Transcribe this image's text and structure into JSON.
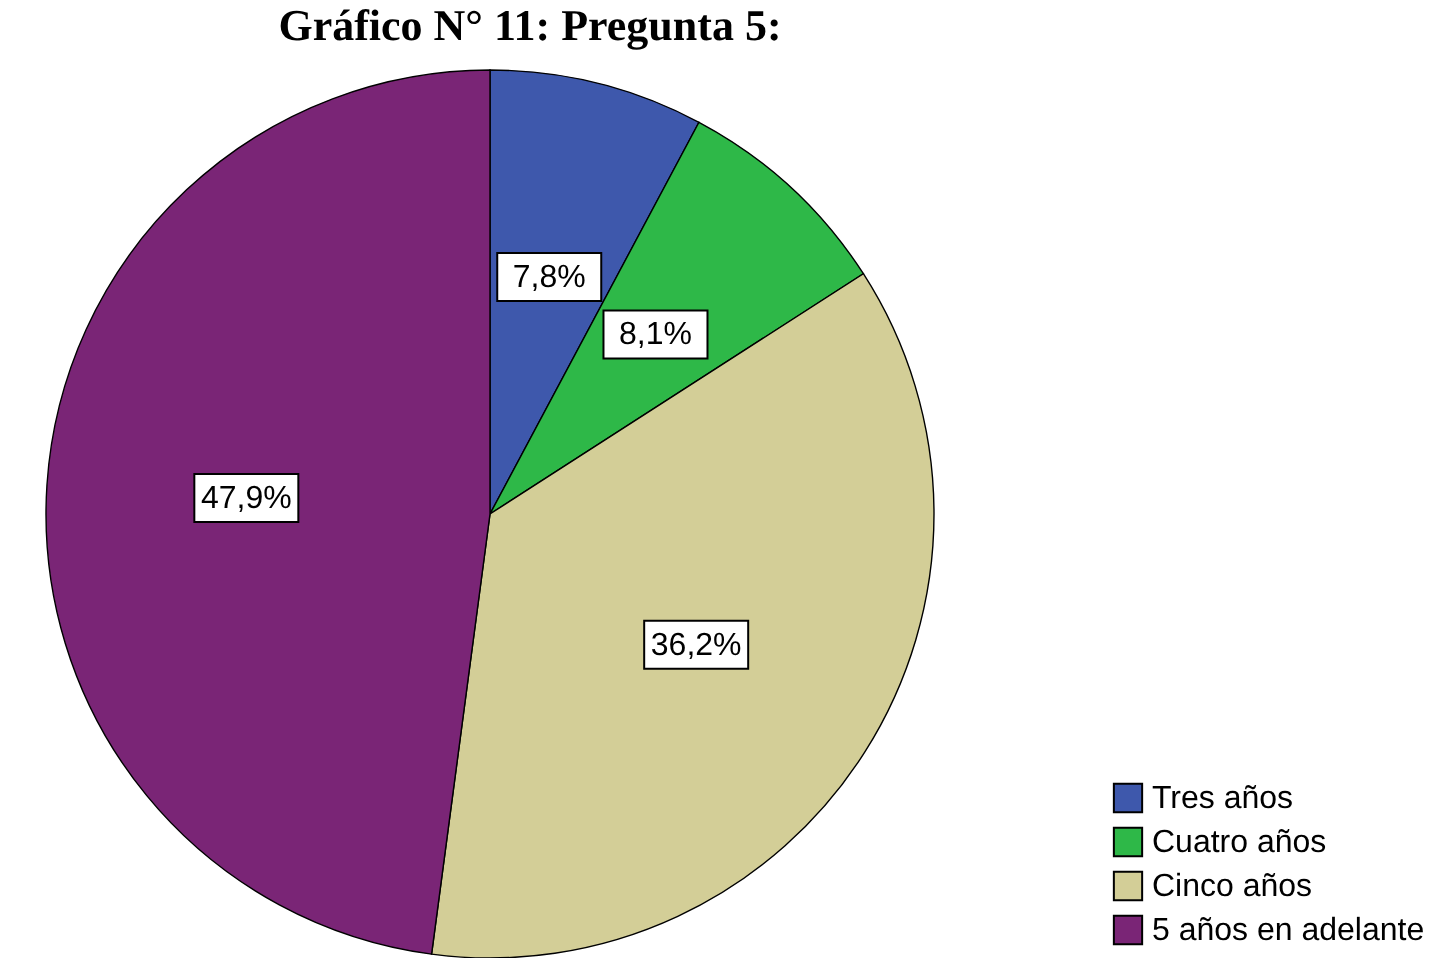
{
  "chart_data": {
    "type": "pie",
    "title": "Gráfico N° 11: Pregunta 5:",
    "categories": [
      "Tres años",
      "Cuatro años",
      "Cinco años",
      "5 años en adelante"
    ],
    "values": [
      7.8,
      8.1,
      36.2,
      47.9
    ],
    "colors": [
      "#3e58ac",
      "#2eb848",
      "#d3ce97",
      "#7a2576"
    ],
    "value_labels": [
      "7,8%",
      "8,1%",
      "36,2%",
      "47,9%"
    ],
    "legend": "bottom right"
  }
}
